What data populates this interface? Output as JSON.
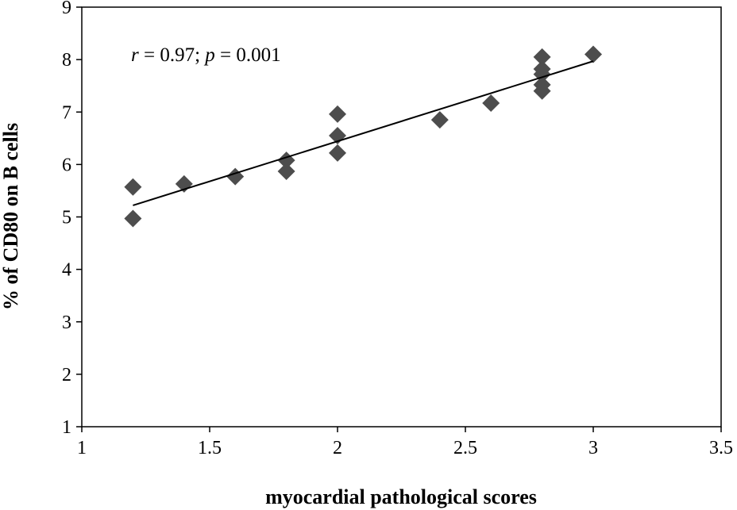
{
  "chart_data": {
    "type": "scatter",
    "title": "",
    "xlabel": "myocardial pathological scores",
    "ylabel": "% of CD80 on B cells",
    "xlim": [
      1,
      3.5
    ],
    "ylim": [
      1,
      9
    ],
    "xticks": [
      "1",
      "1.5",
      "2",
      "2.5",
      "3",
      "3.5"
    ],
    "yticks": [
      "1",
      "2",
      "3",
      "4",
      "5",
      "6",
      "7",
      "8",
      "9"
    ],
    "grid": false,
    "marker": "diamond",
    "marker_color": "#4d4d4d",
    "annotation": {
      "r_label": "r",
      "r_text": " = 0.97; ",
      "p_label": "p",
      "p_text": " = 0.001"
    },
    "points": [
      {
        "x": 1.2,
        "y": 5.57
      },
      {
        "x": 1.2,
        "y": 4.97
      },
      {
        "x": 1.4,
        "y": 5.63
      },
      {
        "x": 1.6,
        "y": 5.77
      },
      {
        "x": 1.8,
        "y": 6.08
      },
      {
        "x": 1.8,
        "y": 5.87
      },
      {
        "x": 2.0,
        "y": 6.96
      },
      {
        "x": 2.0,
        "y": 6.55
      },
      {
        "x": 2.0,
        "y": 6.22
      },
      {
        "x": 2.4,
        "y": 6.85
      },
      {
        "x": 2.6,
        "y": 7.17
      },
      {
        "x": 2.8,
        "y": 8.05
      },
      {
        "x": 2.8,
        "y": 7.82
      },
      {
        "x": 2.8,
        "y": 7.72
      },
      {
        "x": 2.8,
        "y": 7.52
      },
      {
        "x": 2.8,
        "y": 7.4
      },
      {
        "x": 3.0,
        "y": 8.1
      }
    ],
    "trendline": {
      "x": [
        1.2,
        3.0
      ],
      "y": [
        5.22,
        7.97
      ]
    }
  }
}
